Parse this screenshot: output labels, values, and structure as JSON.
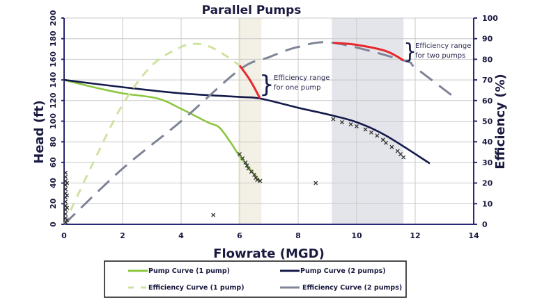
{
  "chart_data": {
    "type": "line",
    "title": "Parallel Pumps",
    "xlabel": "Flowrate (MGD)",
    "ylabel": "Head (ft)",
    "y2label": "Efficiency (%)",
    "xlim": [
      0,
      14
    ],
    "ylim": [
      0,
      200
    ],
    "y2lim": [
      0,
      100
    ],
    "xticks": [
      "0",
      "2",
      "4",
      "6",
      "8",
      "10",
      "12",
      "14"
    ],
    "yticks": [
      "0",
      "20",
      "40",
      "60",
      "80",
      "100",
      "120",
      "140",
      "160",
      "180",
      "200"
    ],
    "y2ticks": [
      "0",
      "10",
      "20",
      "30",
      "40",
      "50",
      "60",
      "70",
      "80",
      "90",
      "100"
    ],
    "grid": true,
    "legend_position": "bottom",
    "shaded_ranges": [
      {
        "x": [
          5.95,
          6.75
        ],
        "color": "#f3f1e6"
      },
      {
        "x": [
          9.15,
          11.6
        ],
        "color": "#e4e5ea"
      }
    ],
    "series": [
      {
        "name": "Pump Curve (1 pump)",
        "axis": "left",
        "style": "solid",
        "color": "#8cc63f",
        "x": [
          0,
          1,
          2,
          3.2,
          4,
          4.9,
          5.3,
          5.7,
          6.0,
          6.4,
          6.7
        ],
        "y": [
          140,
          133,
          127,
          122,
          112,
          99,
          94,
          79,
          66,
          52,
          42
        ]
      },
      {
        "name": "Pump Curve (2 pumps)",
        "axis": "left",
        "style": "solid",
        "color": "#141a4a",
        "x": [
          0,
          2,
          4,
          6,
          6.7,
          8,
          9.1,
          10,
          11,
          12.5
        ],
        "y": [
          140,
          133,
          127,
          123.5,
          122,
          113,
          106,
          99,
          86,
          59
        ]
      },
      {
        "name": "Efficiency Curve (1 pump)",
        "axis": "right",
        "style": "dashed",
        "color": "#cfe3a0",
        "x": [
          0,
          1,
          2,
          3,
          4,
          4.5,
          5,
          5.5,
          6
        ],
        "y": [
          0,
          30,
          58,
          77,
          86,
          87.5,
          86,
          82,
          77
        ]
      },
      {
        "name": "Efficiency Curve (2 pumps)",
        "axis": "right",
        "style": "dashed",
        "color": "#7e8496",
        "x": [
          0,
          2,
          4,
          6,
          7,
          8,
          9.2,
          11.6,
          12,
          13.3
        ],
        "y": [
          0,
          27,
          50,
          75,
          81,
          86,
          88,
          79.5,
          76,
          62
        ]
      }
    ],
    "highlight_segments": [
      {
        "axis": "right",
        "color": "#e8262b",
        "x": [
          6,
          6.35,
          6.7
        ],
        "y": [
          77,
          70,
          61
        ]
      },
      {
        "axis": "right",
        "color": "#e8262b",
        "x": [
          9.2,
          10,
          11,
          11.6
        ],
        "y": [
          88,
          87,
          84,
          79.5
        ]
      }
    ],
    "scatter": {
      "axis": "left",
      "marker": "x",
      "color": "#333333",
      "points": [
        [
          0.05,
          2
        ],
        [
          0.05,
          6
        ],
        [
          0.05,
          10
        ],
        [
          0.05,
          14
        ],
        [
          0.05,
          18
        ],
        [
          0.05,
          22
        ],
        [
          0.05,
          26
        ],
        [
          0.05,
          30
        ],
        [
          0.05,
          34
        ],
        [
          0.05,
          38
        ],
        [
          0.05,
          42
        ],
        [
          0.05,
          46
        ],
        [
          0.05,
          50
        ],
        [
          0.1,
          4
        ],
        [
          0.1,
          16
        ],
        [
          0.1,
          28
        ],
        [
          0.1,
          40
        ],
        [
          6.0,
          68
        ],
        [
          6.1,
          64
        ],
        [
          6.2,
          60
        ],
        [
          6.25,
          57
        ],
        [
          6.3,
          54
        ],
        [
          6.4,
          51
        ],
        [
          6.5,
          48
        ],
        [
          6.55,
          45
        ],
        [
          6.6,
          43
        ],
        [
          6.7,
          42
        ],
        [
          9.2,
          102
        ],
        [
          9.5,
          99
        ],
        [
          9.8,
          97
        ],
        [
          10.0,
          95
        ],
        [
          10.3,
          92
        ],
        [
          10.5,
          89
        ],
        [
          10.7,
          86
        ],
        [
          10.9,
          82
        ],
        [
          11.0,
          79
        ],
        [
          11.2,
          75
        ],
        [
          11.4,
          71
        ],
        [
          11.5,
          68
        ],
        [
          11.6,
          65
        ],
        [
          5.1,
          9
        ],
        [
          8.6,
          40
        ]
      ]
    },
    "annotations": [
      {
        "text_line1": "Efficiency range",
        "text_line2": "for one pump"
      },
      {
        "text_line1": "Efficiency range",
        "text_line2": "for two pumps"
      }
    ]
  }
}
